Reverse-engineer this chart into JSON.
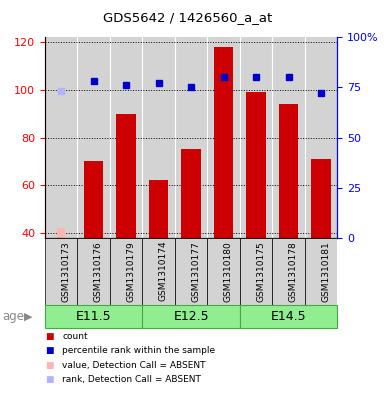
{
  "title": "GDS5642 / 1426560_a_at",
  "samples": [
    "GSM1310173",
    "GSM1310176",
    "GSM1310179",
    "GSM1310174",
    "GSM1310177",
    "GSM1310180",
    "GSM1310175",
    "GSM1310178",
    "GSM1310181"
  ],
  "count_values": [
    null,
    70,
    90,
    62,
    75,
    118,
    99,
    94,
    71
  ],
  "count_absent": [
    42,
    null,
    null,
    null,
    null,
    null,
    null,
    null,
    null
  ],
  "rank_values": [
    null,
    78,
    76,
    77,
    75,
    80,
    80,
    80,
    72
  ],
  "rank_absent": [
    73,
    null,
    null,
    null,
    null,
    null,
    null,
    null,
    null
  ],
  "age_groups": [
    {
      "label": "E11.5",
      "start": 0,
      "end": 3
    },
    {
      "label": "E12.5",
      "start": 3,
      "end": 6
    },
    {
      "label": "E14.5",
      "start": 6,
      "end": 9
    }
  ],
  "ylim_left": [
    38,
    122
  ],
  "ylim_right": [
    0,
    100
  ],
  "yticks_left": [
    40,
    60,
    80,
    100,
    120
  ],
  "yticks_right": [
    0,
    25,
    50,
    75,
    100
  ],
  "yticklabels_right": [
    "0",
    "25",
    "50",
    "75",
    "100%"
  ],
  "color_red": "#cc0000",
  "color_red_absent": "#ffb3b3",
  "color_blue": "#0000cc",
  "color_blue_absent": "#b3b3ff",
  "color_bar_bg": "#d3d3d3",
  "color_age_bg": "#90ee90",
  "color_age_border": "#44aa44",
  "bar_width": 0.6,
  "age_label": "age"
}
